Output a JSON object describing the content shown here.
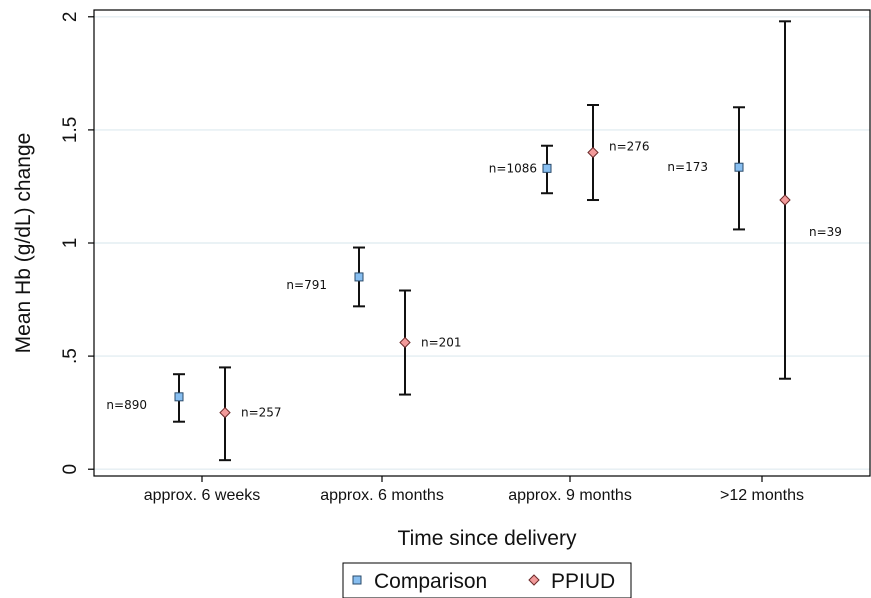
{
  "chart_data": {
    "type": "scatter",
    "title": "",
    "xlabel": "Time since delivery",
    "ylabel": "Mean Hb (g/dL) change",
    "categories": [
      "approx. 6 weeks",
      "approx. 6 months",
      "approx. 9 months",
      ">12 months"
    ],
    "ylim": [
      -0.03,
      2.03
    ],
    "yticks": [
      0,
      0.5,
      1,
      1.5,
      2
    ],
    "ytick_labels": [
      "0",
      ".5",
      "1",
      "1.5",
      "2"
    ],
    "grid": true,
    "legend_position": "bottom",
    "series": [
      {
        "name": "Comparison",
        "marker": "square",
        "color": "#87BEF0",
        "values": [
          0.32,
          0.85,
          1.33,
          1.335
        ],
        "lower": [
          0.21,
          0.72,
          1.22,
          1.06
        ],
        "upper": [
          0.42,
          0.98,
          1.43,
          1.6
        ],
        "n_labels": [
          "n=890",
          "n=791",
          "n=1086",
          "n=173"
        ]
      },
      {
        "name": "PPIUD",
        "marker": "diamond",
        "color": "#F29A9A",
        "values": [
          0.25,
          0.56,
          1.4,
          1.19
        ],
        "lower": [
          0.04,
          0.33,
          1.19,
          0.4
        ],
        "upper": [
          0.45,
          0.79,
          1.61,
          1.98
        ],
        "n_labels": [
          "n=257",
          "n=201",
          "n=276",
          "n=39"
        ]
      }
    ]
  }
}
